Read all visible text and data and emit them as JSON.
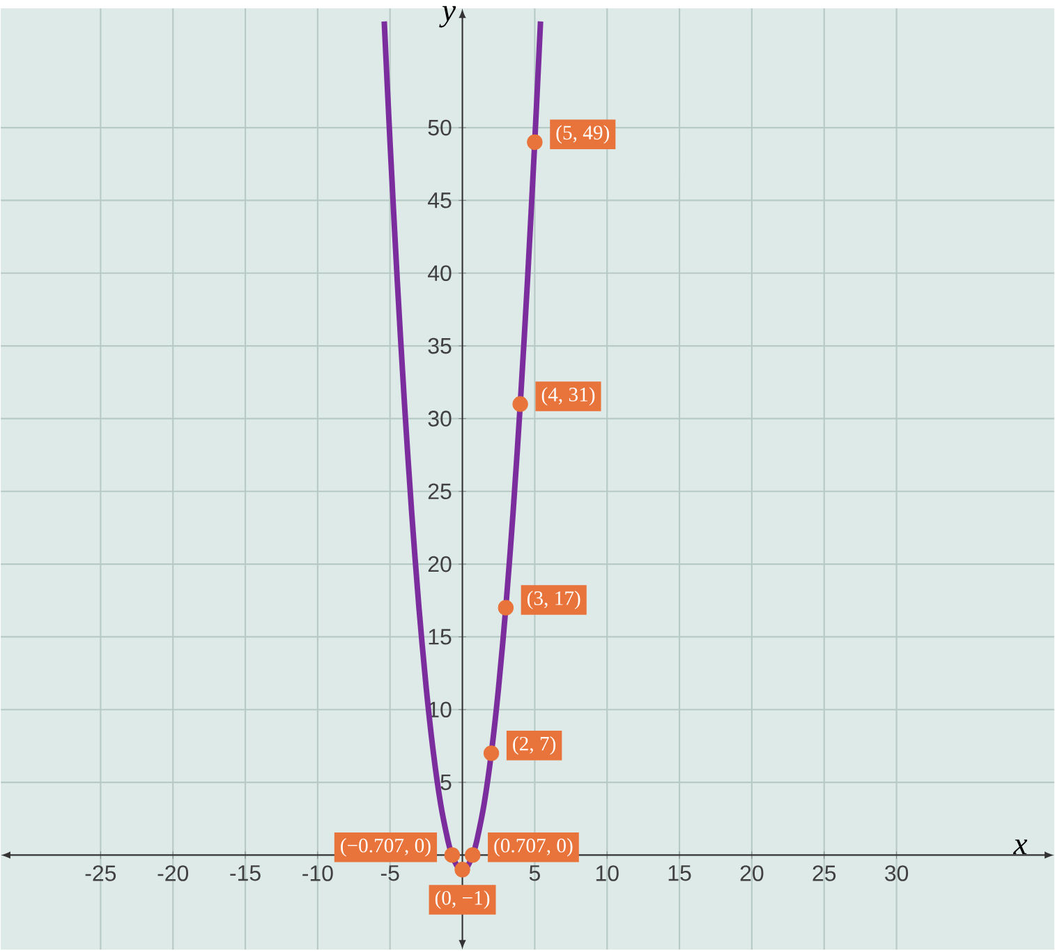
{
  "chart_data": {
    "type": "line",
    "xlabel": "x",
    "ylabel": "y",
    "xlim": [
      -31.9,
      40.9
    ],
    "ylim": [
      -6.5,
      58.2
    ],
    "xticks": [
      -25,
      -20,
      -15,
      -10,
      -5,
      5,
      10,
      15,
      20,
      25,
      30
    ],
    "yticks": [
      5,
      10,
      15,
      20,
      25,
      30,
      35,
      40,
      45,
      50
    ],
    "grid": true,
    "series": [
      {
        "color": "#7b2d9e",
        "marker": "none",
        "x": [
          -5.4,
          -5,
          -4.5,
          -4,
          -3.5,
          -3,
          -2.5,
          -2,
          -1.5,
          -1,
          -0.75,
          -0.5,
          -0.25,
          0,
          0.25,
          0.5,
          0.75,
          1,
          1.5,
          2,
          2.5,
          3,
          3.5,
          4,
          4.5,
          5,
          5.4
        ],
        "values": [
          57.3,
          49,
          39.5,
          31,
          23.5,
          17,
          11.5,
          7,
          3.5,
          1,
          0.1,
          -0.5,
          -0.9,
          -1,
          -0.9,
          -0.5,
          0.1,
          1,
          3.5,
          7,
          11.5,
          17,
          23.5,
          31,
          39.5,
          49,
          57.3
        ]
      },
      {
        "type": "scatter",
        "color": "#e8743b",
        "marker": "circle",
        "x": [
          5,
          4,
          3,
          2,
          0.707,
          -0.707,
          0
        ],
        "values": [
          49,
          31,
          17,
          7,
          0,
          0,
          -1
        ]
      }
    ],
    "annotations": [
      {
        "text": "(5, 49)",
        "x": 5,
        "y": 49
      },
      {
        "text": "(4, 31)",
        "x": 4,
        "y": 31
      },
      {
        "text": "(3, 17)",
        "x": 3,
        "y": 17
      },
      {
        "text": "(2, 7)",
        "x": 2,
        "y": 7
      },
      {
        "text": "(0.707, 0)",
        "x": 0.707,
        "y": 0
      },
      {
        "text": "(−0.707, 0)",
        "x": -0.707,
        "y": 0
      },
      {
        "text": "(0, −1)",
        "x": 0,
        "y": -1
      }
    ]
  }
}
